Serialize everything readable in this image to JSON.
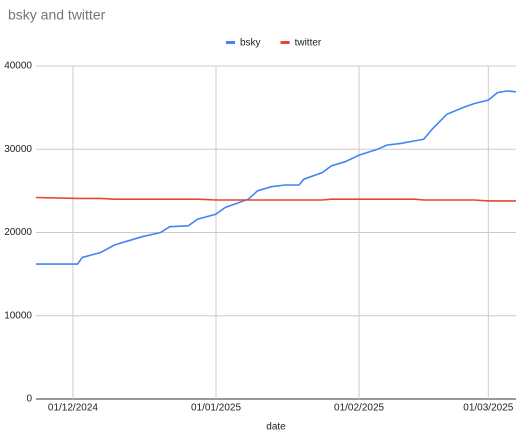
{
  "chart_data": {
    "type": "line",
    "title": "bsky and twitter",
    "x_label": "date",
    "x": [
      "2024-11-23",
      "2024-12-02",
      "2024-12-03",
      "2024-12-07",
      "2024-12-10",
      "2024-12-13",
      "2024-12-16",
      "2024-12-20",
      "2024-12-22",
      "2024-12-26",
      "2024-12-28",
      "2025-01-01",
      "2025-01-03",
      "2025-01-08",
      "2025-01-10",
      "2025-01-13",
      "2025-01-16",
      "2025-01-19",
      "2025-01-20",
      "2025-01-24",
      "2025-01-26",
      "2025-01-29",
      "2025-02-01",
      "2025-02-05",
      "2025-02-07",
      "2025-02-10",
      "2025-02-13",
      "2025-02-15",
      "2025-02-17",
      "2025-02-20",
      "2025-02-24",
      "2025-02-26",
      "2025-03-01",
      "2025-03-03",
      "2025-03-05",
      "2025-03-07"
    ],
    "series": [
      {
        "name": "bsky",
        "color": "#4285f4",
        "values": [
          16200,
          16200,
          17000,
          17600,
          18500,
          19000,
          19500,
          20000,
          20700,
          20800,
          21600,
          22200,
          23000,
          24000,
          25000,
          25500,
          25700,
          25700,
          26400,
          27200,
          28000,
          28500,
          29300,
          30000,
          30500,
          30700,
          31000,
          31200,
          32500,
          34200,
          35100,
          35500,
          35900,
          36800,
          37000,
          36900
        ]
      },
      {
        "name": "twitter",
        "color": "#ea4335",
        "values": [
          24200,
          24100,
          24100,
          24100,
          24000,
          24000,
          24000,
          24000,
          24000,
          24000,
          24000,
          23900,
          23900,
          23900,
          23900,
          23900,
          23900,
          23900,
          23900,
          23900,
          24000,
          24000,
          24000,
          24000,
          24000,
          24000,
          24000,
          23900,
          23900,
          23900,
          23900,
          23900,
          23800,
          23800,
          23800,
          23800
        ]
      }
    ],
    "xlim": [
      "2024-11-23",
      "2025-03-07"
    ],
    "xticks": [
      {
        "value": "2024-12-01",
        "label": "01/12/2024"
      },
      {
        "value": "2025-01-01",
        "label": "01/01/2025"
      },
      {
        "value": "2025-02-01",
        "label": "01/02/2025"
      },
      {
        "value": "2025-03-01",
        "label": "01/03/2025"
      }
    ],
    "ylim": [
      0,
      40000
    ],
    "yticks": [
      0,
      10000,
      20000,
      30000,
      40000
    ],
    "grid": true,
    "legend": "top"
  }
}
